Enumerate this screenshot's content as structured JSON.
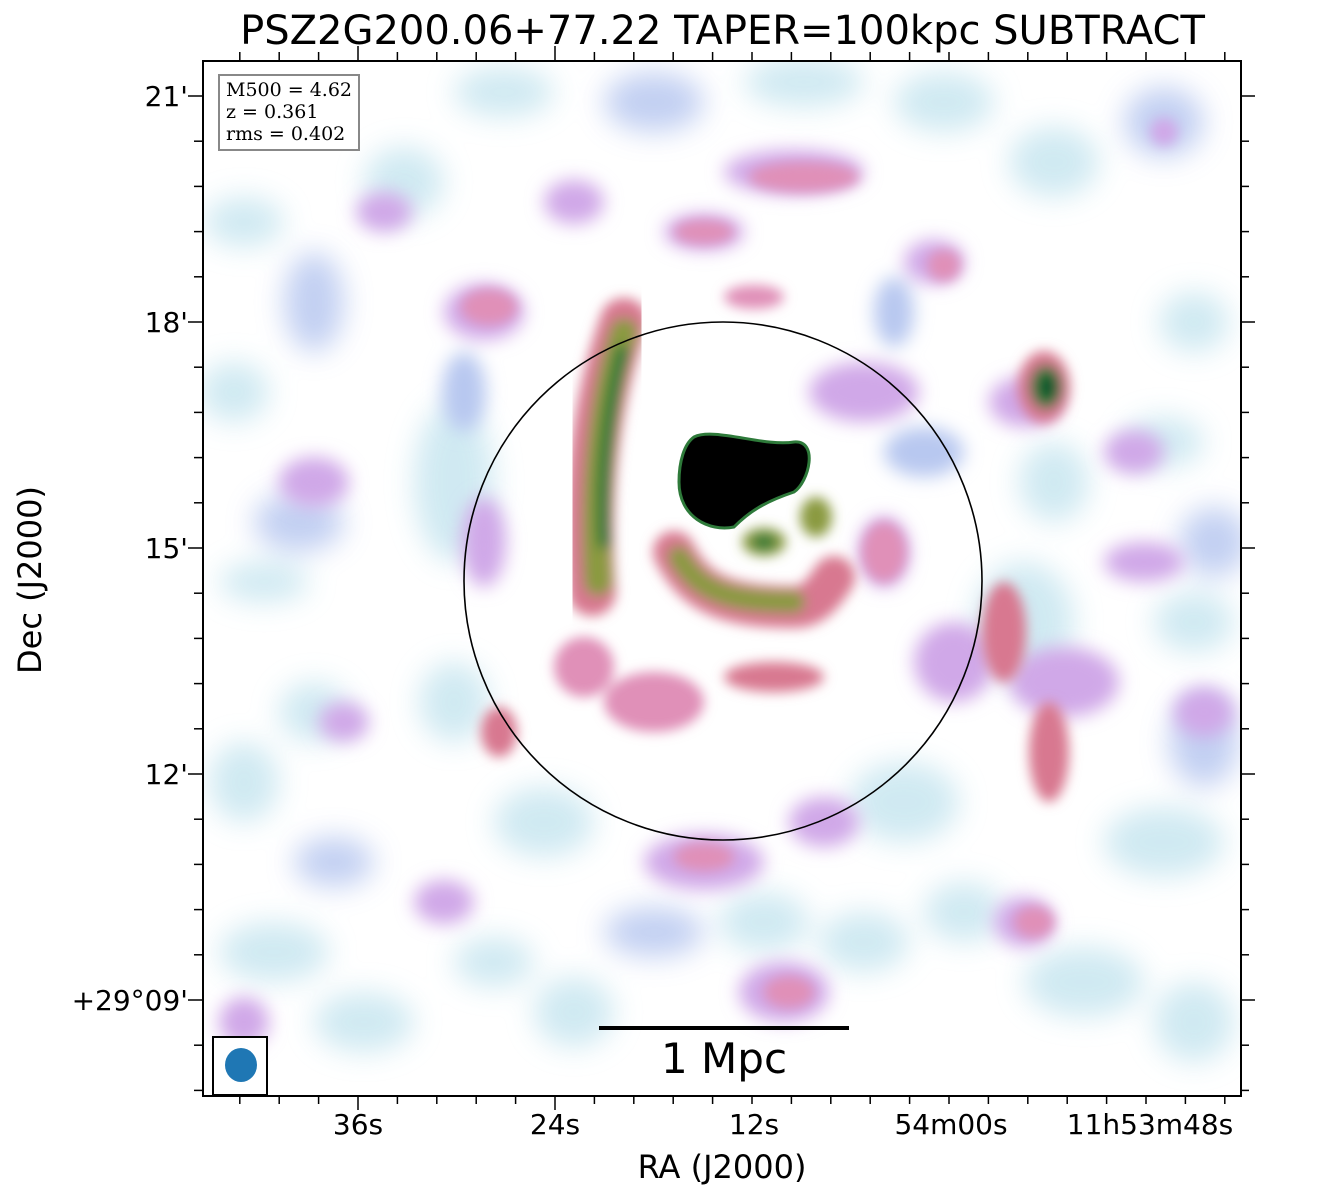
{
  "title": "PSZ2G200.06+77.22 TAPER=100kpc SUBTRACT",
  "info": {
    "m500": "M500 = 4.62",
    "z": "z = 0.361",
    "rms": "rms = 0.402"
  },
  "axes": {
    "xlabel": "RA (J2000)",
    "ylabel": "Dec (J2000)",
    "xticks": [
      "36s",
      "24s",
      "12s",
      "54m00s",
      "11h53m48s"
    ],
    "yticks": [
      "21'",
      "18'",
      "15'",
      "12'",
      "+29°09'"
    ]
  },
  "scalebar": {
    "label": "1 Mpc"
  },
  "colors": {
    "faint": "#c8e6f0",
    "lavender": "#b8c8f0",
    "violet": "#d0a8e8",
    "pink": "#e090b8",
    "rose": "#d87890",
    "olive": "#8a9a40",
    "green": "#2e7a3a",
    "dark-green": "#0f4f2a",
    "core": "#000000",
    "beam": "#1f77b4"
  }
}
